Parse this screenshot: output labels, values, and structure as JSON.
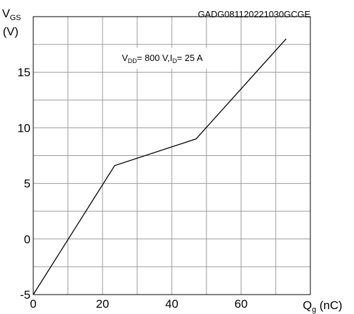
{
  "chart_data": {
    "type": "line",
    "code": "GADG081120221030GCGE",
    "ylabel_main": "V",
    "ylabel_sub": "GS",
    "ylabel_unit": "(V)",
    "xlabel_main": "Q",
    "xlabel_sub": "g",
    "xlabel_unit": " (nC)",
    "annotation": {
      "p1_main": "V",
      "p1_sub": "DD",
      "p1_rest": "= 800 V,I",
      "p2_sub": "D",
      "p2_rest": "= 25 A"
    },
    "xlim": [
      0,
      80
    ],
    "ylim": [
      -5,
      20
    ],
    "x_ticks": [
      0,
      20,
      40,
      60
    ],
    "y_ticks": [
      -5,
      0,
      5,
      10,
      15
    ],
    "grid": true,
    "series": [
      {
        "x": [
          0,
          23.5,
          47,
          73
        ],
        "y": [
          -5,
          6.6,
          9,
          18
        ]
      }
    ]
  }
}
